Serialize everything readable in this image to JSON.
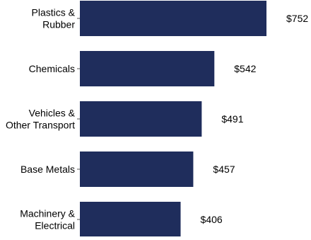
{
  "chart_data": {
    "type": "bar",
    "orientation": "horizontal",
    "categories": [
      [
        "Plastics &",
        "Rubber"
      ],
      [
        "Chemicals"
      ],
      [
        "Vehicles &",
        "Other Transport"
      ],
      [
        "Base Metals"
      ],
      [
        "Machinery &",
        "Electrical"
      ]
    ],
    "values": [
      752,
      542,
      491,
      457,
      406
    ],
    "value_labels": [
      "$752",
      "$542",
      "$491",
      "$457",
      "$406"
    ],
    "bar_color": "#1f2d5c",
    "xlim": [
      0,
      780
    ],
    "grid": false,
    "legend": "none"
  }
}
